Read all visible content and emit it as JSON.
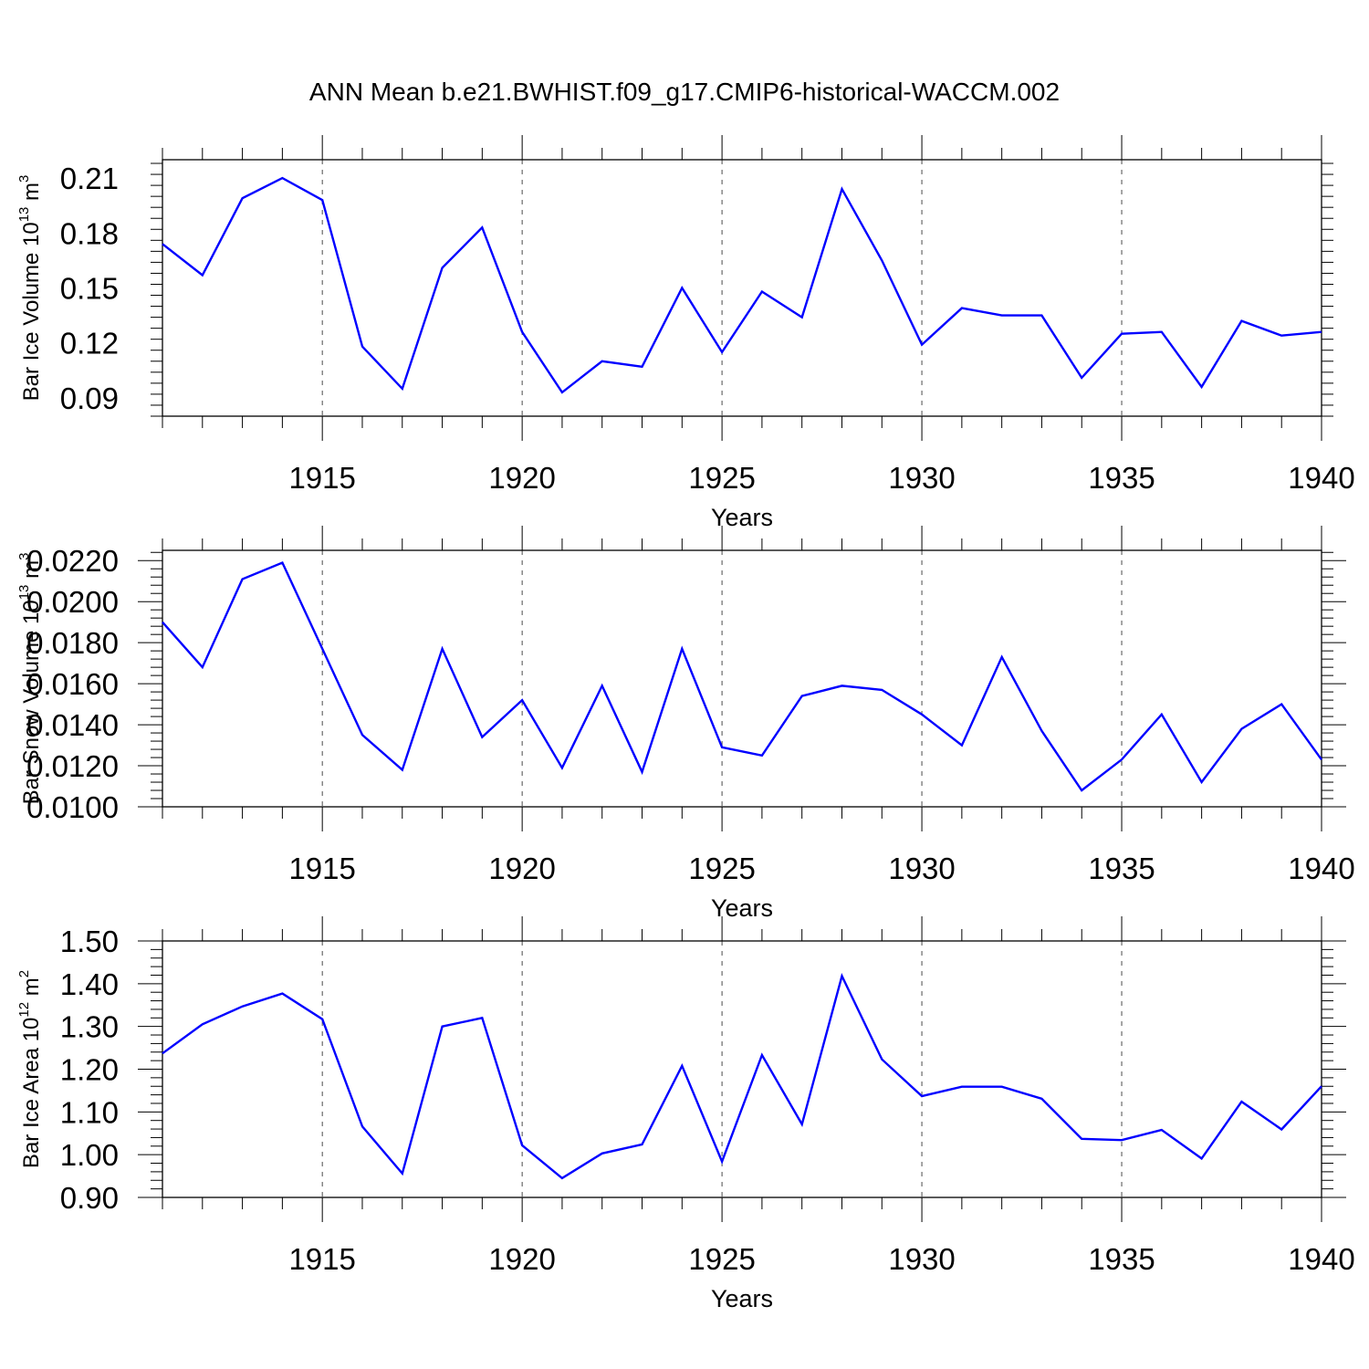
{
  "title": "ANN Mean b.e21.BWHIST.f09_g17.CMIP6-historical-WACCM.002",
  "line_color": "#0000ff",
  "chart_data": [
    {
      "type": "line",
      "xlabel": "Years",
      "ylabel": {
        "text": "Bar Ice Volume 10",
        "exp": "13",
        "unit": " m",
        "unit_exp": "3"
      },
      "xlim": [
        1911,
        1940
      ],
      "ylim": [
        0.08,
        0.22
      ],
      "x_ticks": [
        1915,
        1920,
        1925,
        1930,
        1935,
        1940
      ],
      "x_tick_labels": [
        "1915",
        "1920",
        "1925",
        "1930",
        "1935",
        "1940"
      ],
      "y_ticks": [
        0.09,
        0.12,
        0.15,
        0.18,
        0.21
      ],
      "y_tick_labels": [
        "0.09",
        "0.12",
        "0.15",
        "0.18",
        "0.21"
      ],
      "grid": "vertical dashed at major x ticks",
      "x": [
        1911,
        1912,
        1913,
        1914,
        1915,
        1916,
        1917,
        1918,
        1919,
        1920,
        1921,
        1922,
        1923,
        1924,
        1925,
        1926,
        1927,
        1928,
        1929,
        1930,
        1931,
        1932,
        1933,
        1934,
        1935,
        1936,
        1937,
        1938,
        1939,
        1940
      ],
      "values": [
        0.174,
        0.157,
        0.199,
        0.21,
        0.198,
        0.118,
        0.095,
        0.161,
        0.183,
        0.126,
        0.093,
        0.11,
        0.107,
        0.15,
        0.115,
        0.148,
        0.134,
        0.204,
        0.165,
        0.119,
        0.139,
        0.135,
        0.135,
        0.101,
        0.125,
        0.126,
        0.096,
        0.132,
        0.124,
        0.126
      ]
    },
    {
      "type": "line",
      "xlabel": "Years",
      "ylabel": {
        "text": "Bar Snow Volume 10",
        "exp": "13",
        "unit": " m",
        "unit_exp": "3"
      },
      "xlim": [
        1911,
        1940
      ],
      "ylim": [
        0.01,
        0.0225
      ],
      "x_ticks": [
        1915,
        1920,
        1925,
        1930,
        1935,
        1940
      ],
      "x_tick_labels": [
        "1915",
        "1920",
        "1925",
        "1930",
        "1935",
        "1940"
      ],
      "y_ticks": [
        0.01,
        0.012,
        0.014,
        0.016,
        0.018,
        0.02,
        0.022
      ],
      "y_tick_labels": [
        "0.0100",
        "0.0120",
        "0.0140",
        "0.0160",
        "0.0180",
        "0.0200",
        "0.0220"
      ],
      "grid": "vertical dashed at major x ticks",
      "x": [
        1911,
        1912,
        1913,
        1914,
        1915,
        1916,
        1917,
        1918,
        1919,
        1920,
        1921,
        1922,
        1923,
        1924,
        1925,
        1926,
        1927,
        1928,
        1929,
        1930,
        1931,
        1932,
        1933,
        1934,
        1935,
        1936,
        1937,
        1938,
        1939,
        1940
      ],
      "values": [
        0.019,
        0.0168,
        0.0211,
        0.0219,
        0.0177,
        0.0135,
        0.0118,
        0.0177,
        0.0134,
        0.0152,
        0.0119,
        0.0159,
        0.0117,
        0.0177,
        0.0129,
        0.0125,
        0.0154,
        0.0159,
        0.0157,
        0.0145,
        0.013,
        0.0173,
        0.0137,
        0.0108,
        0.0123,
        0.0145,
        0.0112,
        0.0138,
        0.015,
        0.0123
      ]
    },
    {
      "type": "line",
      "xlabel": "Years",
      "ylabel": {
        "text": "Bar Ice Area 10",
        "exp": "12",
        "unit": " m",
        "unit_exp": "2"
      },
      "xlim": [
        1911,
        1940
      ],
      "ylim": [
        0.9,
        1.5
      ],
      "x_ticks": [
        1915,
        1920,
        1925,
        1930,
        1935,
        1940
      ],
      "x_tick_labels": [
        "1915",
        "1920",
        "1925",
        "1930",
        "1935",
        "1940"
      ],
      "y_ticks": [
        0.9,
        1.0,
        1.1,
        1.2,
        1.3,
        1.4,
        1.5
      ],
      "y_tick_labels": [
        "0.90",
        "1.00",
        "1.10",
        "1.20",
        "1.30",
        "1.40",
        "1.50"
      ],
      "grid": "vertical dashed at major x ticks",
      "x": [
        1911,
        1912,
        1913,
        1914,
        1915,
        1916,
        1917,
        1918,
        1919,
        1920,
        1921,
        1922,
        1923,
        1924,
        1925,
        1926,
        1927,
        1928,
        1929,
        1930,
        1931,
        1932,
        1933,
        1934,
        1935,
        1936,
        1937,
        1938,
        1939,
        1940
      ],
      "values": [
        1.237,
        1.305,
        1.347,
        1.377,
        1.317,
        1.066,
        0.956,
        1.3,
        1.32,
        1.022,
        0.945,
        1.003,
        1.024,
        1.208,
        0.984,
        1.233,
        1.071,
        1.418,
        1.223,
        1.137,
        1.159,
        1.159,
        1.131,
        1.037,
        1.034,
        1.058,
        0.991,
        1.124,
        1.059,
        1.16
      ]
    }
  ]
}
